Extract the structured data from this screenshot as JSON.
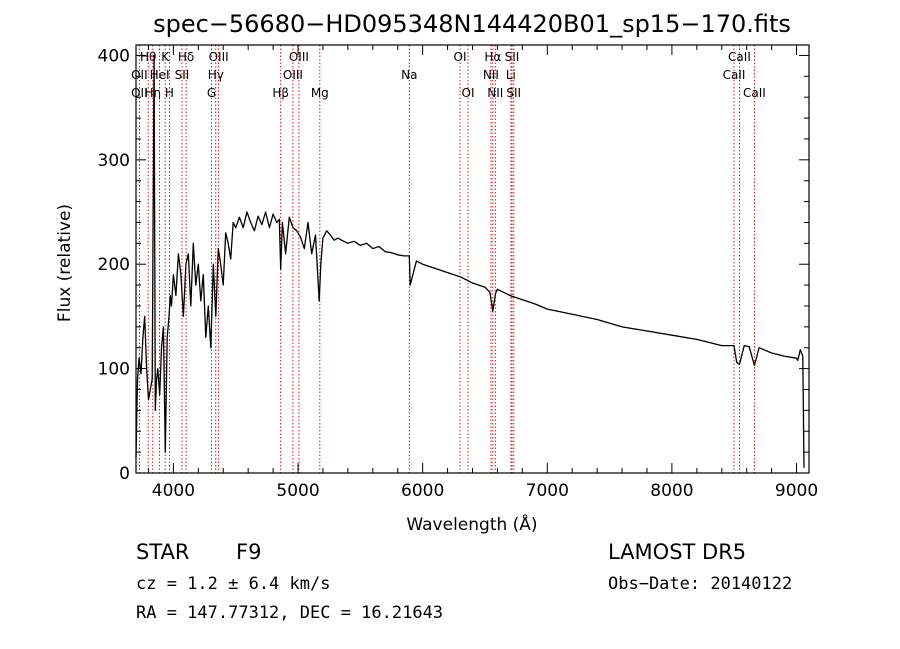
{
  "chart_data": {
    "type": "line",
    "title": "spec−56680−HD095348N144420B01_sp15−170.fits",
    "xlabel": "Wavelength (Å)",
    "ylabel": "Flux (relative)",
    "xlim": [
      3700,
      9100
    ],
    "ylim": [
      0,
      410
    ],
    "xticks": [
      4000,
      5000,
      6000,
      7000,
      8000,
      9000
    ],
    "yticks": [
      0,
      100,
      200,
      300,
      400
    ],
    "grid": false,
    "line_color": "#000000",
    "marker_color": "#d00000",
    "series": [
      {
        "x": [
          3700,
          3712,
          3725,
          3740,
          3755,
          3770,
          3785,
          3800,
          3815,
          3830,
          3845,
          3855,
          3865,
          3875,
          3890,
          3905,
          3920,
          3935,
          3950,
          3965,
          3975,
          3985,
          4000,
          4020,
          4040,
          4060,
          4080,
          4100,
          4120,
          4140,
          4160,
          4180,
          4200,
          4220,
          4240,
          4260,
          4280,
          4300,
          4320,
          4340,
          4360,
          4380,
          4400,
          4420,
          4440,
          4460,
          4480,
          4500,
          4530,
          4560,
          4590,
          4620,
          4650,
          4680,
          4710,
          4740,
          4770,
          4800,
          4830,
          4850,
          4861,
          4875,
          4900,
          4930,
          4960,
          4990,
          5020,
          5050,
          5080,
          5110,
          5140,
          5170,
          5183,
          5200,
          5230,
          5260,
          5290,
          5320,
          5350,
          5400,
          5450,
          5500,
          5550,
          5600,
          5650,
          5700,
          5750,
          5800,
          5850,
          5893,
          5900,
          5950,
          6000,
          6100,
          6200,
          6300,
          6400,
          6500,
          6540,
          6563,
          6585,
          6600,
          6700,
          6800,
          6900,
          7000,
          7200,
          7400,
          7600,
          7800,
          8000,
          8200,
          8400,
          8498,
          8520,
          8542,
          8580,
          8620,
          8662,
          8700,
          8800,
          8900,
          9000,
          9010,
          9030,
          9050,
          9060
        ],
        "y": [
          15,
          90,
          110,
          95,
          130,
          150,
          100,
          70,
          80,
          90,
          400,
          60,
          90,
          100,
          75,
          120,
          140,
          20,
          130,
          150,
          170,
          160,
          190,
          170,
          210,
          190,
          150,
          200,
          210,
          160,
          220,
          180,
          200,
          165,
          190,
          130,
          160,
          120,
          200,
          150,
          215,
          200,
          180,
          230,
          220,
          205,
          240,
          235,
          245,
          235,
          250,
          240,
          232,
          246,
          238,
          250,
          235,
          248,
          240,
          243,
          195,
          240,
          210,
          245,
          235,
          232,
          226,
          215,
          240,
          210,
          228,
          165,
          200,
          225,
          232,
          228,
          223,
          225,
          223,
          220,
          222,
          218,
          220,
          215,
          217,
          212,
          211,
          209,
          208,
          208,
          180,
          203,
          200,
          196,
          192,
          188,
          182,
          178,
          173,
          155,
          172,
          176,
          170,
          166,
          162,
          157,
          152,
          147,
          140,
          136,
          132,
          128,
          122,
          122,
          106,
          104,
          122,
          121,
          103,
          120,
          115,
          112,
          110,
          108,
          118,
          112,
          5
        ],
        "line_width": 1.3
      }
    ],
    "line_markers": [
      {
        "label": "Hθ",
        "x": 3798,
        "row": 0
      },
      {
        "label": "OII",
        "x": 3727,
        "row": 1
      },
      {
        "label": "OII",
        "x": 3727,
        "row": 2
      },
      {
        "label": "Hη",
        "x": 3835,
        "row": 2
      },
      {
        "label": "K",
        "x": 3934,
        "row": 0
      },
      {
        "label": "HeI",
        "x": 3889,
        "row": 1
      },
      {
        "label": "H",
        "x": 3968,
        "row": 2
      },
      {
        "label": "Hδ",
        "x": 4102,
        "row": 0
      },
      {
        "label": "SII",
        "x": 4069,
        "row": 1
      },
      {
        "label": "OIII",
        "x": 4363,
        "row": 0
      },
      {
        "label": "Hγ",
        "x": 4340,
        "row": 1
      },
      {
        "label": "G",
        "x": 4306,
        "row": 2
      },
      {
        "label": "Hβ",
        "x": 4861,
        "row": 2
      },
      {
        "label": "OIII",
        "x": 5007,
        "row": 0
      },
      {
        "label": "OIII",
        "x": 4959,
        "row": 1
      },
      {
        "label": "Mg",
        "x": 5175,
        "row": 2
      },
      {
        "label": "Na",
        "x": 5893,
        "row": 1
      },
      {
        "label": "OI",
        "x": 6300,
        "row": 0
      },
      {
        "label": "OI",
        "x": 6364,
        "row": 2
      },
      {
        "label": "Hα",
        "x": 6563,
        "row": 0
      },
      {
        "label": "NII",
        "x": 6548,
        "row": 1
      },
      {
        "label": "NII",
        "x": 6583,
        "row": 2
      },
      {
        "label": "SII",
        "x": 6717,
        "row": 0
      },
      {
        "label": "Li",
        "x": 6708,
        "row": 1
      },
      {
        "label": "SII",
        "x": 6731,
        "row": 2
      },
      {
        "label": "CaII",
        "x": 8542,
        "row": 0
      },
      {
        "label": "CaII",
        "x": 8498,
        "row": 1
      },
      {
        "label": "CaII",
        "x": 8662,
        "row": 2
      }
    ]
  },
  "info": {
    "object_class": "STAR",
    "subclass": "F9",
    "survey": "LAMOST DR5",
    "cz": "cz = 1.2 ± 6.4 km/s",
    "obs_date": "Obs−Date: 20140122",
    "coords": "RA = 147.77312, DEC =  16.21643"
  }
}
